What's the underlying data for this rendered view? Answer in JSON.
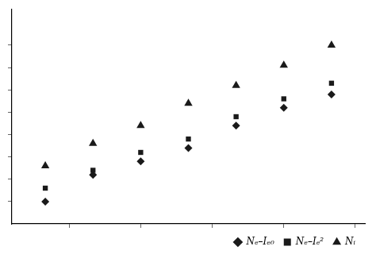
{
  "chart_data": {
    "type": "scatter",
    "x": [
      1,
      2,
      3,
      4,
      5,
      6,
      7
    ],
    "series": [
      {
        "name": "Nₑ–Iₑ₀",
        "color": "#1a1a1a",
        "marker": "diamond",
        "values": [
          1.5,
          2.1,
          2.4,
          2.7,
          3.2,
          3.6,
          3.9
        ]
      },
      {
        "name": "Nₑ–Iₑ²",
        "color": "#1a1a1a",
        "marker": "square",
        "values": [
          1.8,
          2.2,
          2.6,
          2.9,
          3.4,
          3.8,
          4.15
        ]
      },
      {
        "name": "Nᵢ",
        "color": "#1a1a1a",
        "marker": "triangle",
        "values": [
          2.3,
          2.8,
          3.2,
          3.7,
          4.1,
          4.55,
          5.0
        ]
      }
    ],
    "xlim": [
      0.3,
      7.7
    ],
    "ylim": [
      1.0,
      5.8
    ],
    "xticks": [
      1.5,
      3.0,
      4.5,
      6.0,
      7.5
    ],
    "yticks": [
      1.5,
      2.0,
      2.5,
      3.0,
      3.5,
      4.0,
      4.5,
      5.0
    ],
    "grid": false,
    "legend": "lower right",
    "tick_labels": false
  }
}
